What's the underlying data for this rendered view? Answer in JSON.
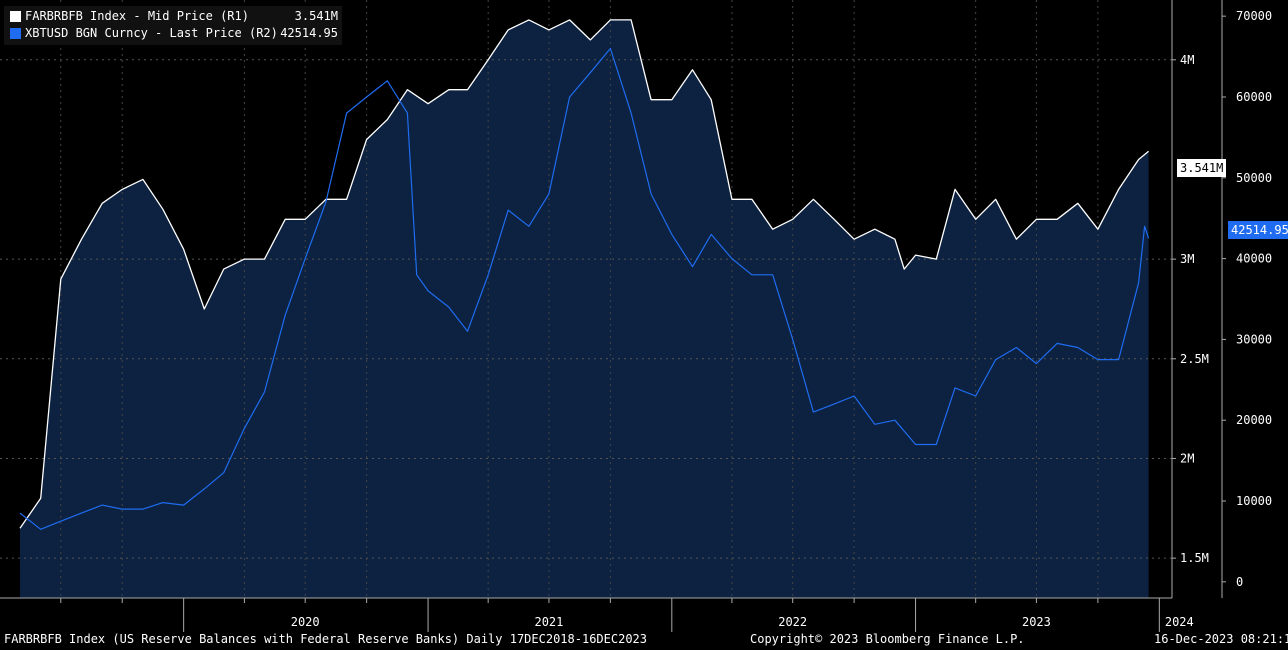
{
  "legend": [
    {
      "name": "FARBRBFB Index - Mid Price (R1)",
      "value": "3.541M",
      "color": "#ffffff"
    },
    {
      "name": "XBTUSD BGN Curncy - Last Price (R2)",
      "value": "42514.95",
      "color": "#1f6cf0"
    }
  ],
  "price_tags": {
    "r1": "3.541M",
    "r2": "42514.95"
  },
  "footer": {
    "left": "FARBRBFB Index (US Reserve Balances with Federal Reserve Banks)  Daily 17DEC2018-16DEC2023",
    "center": "Copyright© 2023 Bloomberg Finance L.P.",
    "right": "16-Dec-2023 08:21:13"
  },
  "chart_data": {
    "type": "line",
    "background": "#000000",
    "area_fill": "#0c2240",
    "grid": true,
    "x_ticks": [
      "2020",
      "2021",
      "2022",
      "2023",
      "2024"
    ],
    "y_right1": {
      "ticks": [
        "1.5M",
        "2M",
        "2.5M",
        "3M",
        "4M"
      ],
      "range": [
        1.3,
        4.3
      ],
      "unit": "M"
    },
    "y_right2": {
      "ticks": [
        "0",
        "10000",
        "20000",
        "30000",
        "40000",
        "50000",
        "60000",
        "70000"
      ],
      "range": [
        -2000,
        72000
      ]
    },
    "series": [
      {
        "name": "FARBRBFB Index - Mid Price (R1)",
        "axis": "r1",
        "color": "#ffffff",
        "points": [
          [
            "2019-05-01",
            1.65
          ],
          [
            "2019-06-01",
            1.8
          ],
          [
            "2019-07-01",
            2.9
          ],
          [
            "2019-08-01",
            3.1
          ],
          [
            "2019-09-01",
            3.28
          ],
          [
            "2019-10-01",
            3.35
          ],
          [
            "2019-11-01",
            3.4
          ],
          [
            "2019-12-01",
            3.25
          ],
          [
            "2020-01-01",
            3.05
          ],
          [
            "2020-02-01",
            2.75
          ],
          [
            "2020-03-01",
            2.95
          ],
          [
            "2020-04-01",
            3.0
          ],
          [
            "2020-05-01",
            3.0
          ],
          [
            "2020-06-01",
            3.2
          ],
          [
            "2020-07-01",
            3.2
          ],
          [
            "2020-08-01",
            3.3
          ],
          [
            "2020-09-01",
            3.3
          ],
          [
            "2020-10-01",
            3.6
          ],
          [
            "2020-11-01",
            3.7
          ],
          [
            "2020-12-01",
            3.85
          ],
          [
            "2021-01-01",
            3.78
          ],
          [
            "2021-02-01",
            3.85
          ],
          [
            "2021-03-01",
            3.85
          ],
          [
            "2021-04-01",
            4.0
          ],
          [
            "2021-05-01",
            4.15
          ],
          [
            "2021-06-01",
            4.2
          ],
          [
            "2021-07-01",
            4.15
          ],
          [
            "2021-08-01",
            4.2
          ],
          [
            "2021-09-01",
            4.1
          ],
          [
            "2021-10-01",
            4.2
          ],
          [
            "2021-11-01",
            4.2
          ],
          [
            "2021-12-01",
            3.8
          ],
          [
            "2022-01-01",
            3.8
          ],
          [
            "2022-02-01",
            3.95
          ],
          [
            "2022-03-01",
            3.8
          ],
          [
            "2022-04-01",
            3.3
          ],
          [
            "2022-05-01",
            3.3
          ],
          [
            "2022-06-01",
            3.15
          ],
          [
            "2022-07-01",
            3.2
          ],
          [
            "2022-08-01",
            3.3
          ],
          [
            "2022-09-01",
            3.2
          ],
          [
            "2022-10-01",
            3.1
          ],
          [
            "2022-11-01",
            3.15
          ],
          [
            "2022-12-01",
            3.1
          ],
          [
            "2022-12-15",
            2.95
          ],
          [
            "2023-01-01",
            3.02
          ],
          [
            "2023-02-01",
            3.0
          ],
          [
            "2023-03-01",
            3.35
          ],
          [
            "2023-04-01",
            3.2
          ],
          [
            "2023-05-01",
            3.3
          ],
          [
            "2023-06-01",
            3.1
          ],
          [
            "2023-07-01",
            3.2
          ],
          [
            "2023-08-01",
            3.2
          ],
          [
            "2023-09-01",
            3.28
          ],
          [
            "2023-10-01",
            3.15
          ],
          [
            "2023-11-01",
            3.35
          ],
          [
            "2023-12-01",
            3.5
          ],
          [
            "2023-12-16",
            3.541
          ]
        ]
      },
      {
        "name": "XBTUSD BGN Curncy - Last Price (R2)",
        "axis": "r2",
        "color": "#1f6cf0",
        "points": [
          [
            "2019-05-01",
            8500
          ],
          [
            "2019-06-01",
            6500
          ],
          [
            "2019-07-01",
            7500
          ],
          [
            "2019-08-01",
            8500
          ],
          [
            "2019-09-01",
            9500
          ],
          [
            "2019-10-01",
            9000
          ],
          [
            "2019-11-01",
            9000
          ],
          [
            "2019-12-01",
            9800
          ],
          [
            "2020-01-01",
            9500
          ],
          [
            "2020-02-01",
            11500
          ],
          [
            "2020-03-01",
            13500
          ],
          [
            "2020-04-01",
            19000
          ],
          [
            "2020-05-01",
            23500
          ],
          [
            "2020-06-01",
            33000
          ],
          [
            "2020-07-01",
            40000
          ],
          [
            "2020-08-01",
            47000
          ],
          [
            "2020-09-01",
            58000
          ],
          [
            "2020-10-01",
            60000
          ],
          [
            "2020-11-01",
            62000
          ],
          [
            "2020-12-01",
            58000
          ],
          [
            "2020-12-15",
            38000
          ],
          [
            "2021-01-01",
            36000
          ],
          [
            "2021-02-01",
            34000
          ],
          [
            "2021-03-01",
            31000
          ],
          [
            "2021-04-01",
            38000
          ],
          [
            "2021-05-01",
            46000
          ],
          [
            "2021-06-01",
            44000
          ],
          [
            "2021-07-01",
            48000
          ],
          [
            "2021-08-01",
            60000
          ],
          [
            "2021-09-01",
            63000
          ],
          [
            "2021-10-01",
            66000
          ],
          [
            "2021-11-01",
            58000
          ],
          [
            "2021-12-01",
            48000
          ],
          [
            "2022-01-01",
            43000
          ],
          [
            "2022-02-01",
            39000
          ],
          [
            "2022-03-01",
            43000
          ],
          [
            "2022-04-01",
            40000
          ],
          [
            "2022-05-01",
            38000
          ],
          [
            "2022-06-01",
            38000
          ],
          [
            "2022-07-01",
            30000
          ],
          [
            "2022-08-01",
            21000
          ],
          [
            "2022-09-01",
            22000
          ],
          [
            "2022-10-01",
            23000
          ],
          [
            "2022-11-01",
            19500
          ],
          [
            "2022-12-01",
            20000
          ],
          [
            "2023-01-01",
            17000
          ],
          [
            "2023-02-01",
            17000
          ],
          [
            "2023-03-01",
            24000
          ],
          [
            "2023-04-01",
            23000
          ],
          [
            "2023-05-01",
            27500
          ],
          [
            "2023-06-01",
            29000
          ],
          [
            "2023-07-01",
            27000
          ],
          [
            "2023-08-01",
            29500
          ],
          [
            "2023-09-01",
            29000
          ],
          [
            "2023-10-01",
            27500
          ],
          [
            "2023-11-01",
            27500
          ],
          [
            "2023-12-01",
            37000
          ],
          [
            "2023-12-10",
            44000
          ],
          [
            "2023-12-16",
            42514.95
          ]
        ]
      }
    ]
  }
}
